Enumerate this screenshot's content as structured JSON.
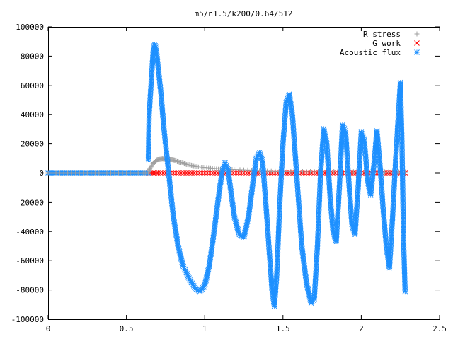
{
  "chart_data": {
    "type": "scatter",
    "title": "m5/n1.5/k200/0.64/512",
    "xlabel": "",
    "ylabel": "",
    "xlim": [
      0,
      2.5
    ],
    "ylim": [
      -100000,
      100000
    ],
    "x_ticks": [
      0,
      0.5,
      1,
      1.5,
      2,
      2.5
    ],
    "x_tick_labels": [
      "0",
      "0.5",
      "1",
      "1.5",
      "2",
      "2.5"
    ],
    "y_ticks": [
      -100000,
      -80000,
      -60000,
      -40000,
      -20000,
      0,
      20000,
      40000,
      60000,
      80000,
      100000
    ],
    "y_tick_labels": [
      "-100000",
      "-80000",
      "-60000",
      "-40000",
      "-20000",
      "0",
      "20000",
      "40000",
      "60000",
      "80000",
      "100000"
    ],
    "grid": false,
    "legend_position": "top-right",
    "series": [
      {
        "name": "R stress",
        "marker": "plus",
        "color": "#a0a0a0",
        "points": [
          [
            0.0,
            0
          ],
          [
            0.1,
            0
          ],
          [
            0.2,
            0
          ],
          [
            0.3,
            0
          ],
          [
            0.4,
            0
          ],
          [
            0.5,
            0
          ],
          [
            0.6,
            0
          ],
          [
            0.64,
            0
          ],
          [
            0.65,
            3000
          ],
          [
            0.67,
            6500
          ],
          [
            0.69,
            8500
          ],
          [
            0.71,
            9500
          ],
          [
            0.73,
            9800
          ],
          [
            0.75,
            9500
          ],
          [
            0.77,
            8800
          ],
          [
            0.79,
            9000
          ],
          [
            0.81,
            8500
          ],
          [
            0.84,
            7500
          ],
          [
            0.87,
            6500
          ],
          [
            0.9,
            5500
          ],
          [
            0.93,
            4800
          ],
          [
            0.96,
            4200
          ],
          [
            1.0,
            3600
          ],
          [
            1.05,
            3100
          ],
          [
            1.1,
            2700
          ],
          [
            1.15,
            2400
          ],
          [
            1.2,
            2100
          ],
          [
            1.3,
            1700
          ],
          [
            1.4,
            1400
          ],
          [
            1.5,
            1200
          ],
          [
            1.6,
            1000
          ],
          [
            1.7,
            900
          ],
          [
            1.8,
            800
          ],
          [
            1.9,
            700
          ],
          [
            2.0,
            600
          ],
          [
            2.1,
            550
          ],
          [
            2.2,
            500
          ],
          [
            2.28,
            450
          ]
        ]
      },
      {
        "name": "G work",
        "marker": "cross",
        "color": "#ff0000",
        "points": [
          [
            0.64,
            0
          ],
          [
            0.7,
            0
          ],
          [
            0.8,
            0
          ],
          [
            0.9,
            0
          ],
          [
            1.0,
            0
          ],
          [
            1.1,
            0
          ],
          [
            1.2,
            0
          ],
          [
            1.3,
            0
          ],
          [
            1.4,
            0
          ],
          [
            1.5,
            0
          ],
          [
            1.6,
            0
          ],
          [
            1.7,
            0
          ],
          [
            1.8,
            0
          ],
          [
            1.9,
            0
          ],
          [
            2.0,
            0
          ],
          [
            2.1,
            0
          ],
          [
            2.2,
            0
          ],
          [
            2.28,
            0
          ]
        ]
      },
      {
        "name": "Acoustic flux",
        "marker": "star",
        "color": "#1e90ff",
        "baseline": {
          "x_from": 0.0,
          "x_to": 0.64,
          "value": 0
        },
        "curve": [
          [
            0.64,
            9000
          ],
          [
            0.645,
            40000
          ],
          [
            0.66,
            65000
          ],
          [
            0.67,
            82000
          ],
          [
            0.68,
            88000
          ],
          [
            0.69,
            85000
          ],
          [
            0.7,
            75000
          ],
          [
            0.72,
            55000
          ],
          [
            0.74,
            30000
          ],
          [
            0.76,
            10000
          ],
          [
            0.78,
            -10000
          ],
          [
            0.8,
            -30000
          ],
          [
            0.83,
            -50000
          ],
          [
            0.86,
            -63000
          ],
          [
            0.9,
            -72000
          ],
          [
            0.94,
            -79000
          ],
          [
            0.97,
            -81000
          ],
          [
            1.0,
            -77000
          ],
          [
            1.03,
            -63000
          ],
          [
            1.06,
            -40000
          ],
          [
            1.09,
            -15000
          ],
          [
            1.11,
            0
          ],
          [
            1.13,
            7000
          ],
          [
            1.15,
            2000
          ],
          [
            1.17,
            -15000
          ],
          [
            1.19,
            -30000
          ],
          [
            1.22,
            -42000
          ],
          [
            1.25,
            -44000
          ],
          [
            1.28,
            -30000
          ],
          [
            1.31,
            -5000
          ],
          [
            1.33,
            10000
          ],
          [
            1.35,
            14000
          ],
          [
            1.37,
            8000
          ],
          [
            1.39,
            -20000
          ],
          [
            1.41,
            -50000
          ],
          [
            1.43,
            -80000
          ],
          [
            1.445,
            -91000
          ],
          [
            1.46,
            -70000
          ],
          [
            1.48,
            -20000
          ],
          [
            1.5,
            20000
          ],
          [
            1.52,
            48000
          ],
          [
            1.54,
            54000
          ],
          [
            1.56,
            40000
          ],
          [
            1.58,
            10000
          ],
          [
            1.6,
            -20000
          ],
          [
            1.62,
            -50000
          ],
          [
            1.65,
            -75000
          ],
          [
            1.68,
            -89000
          ],
          [
            1.7,
            -86000
          ],
          [
            1.72,
            -50000
          ],
          [
            1.74,
            0
          ],
          [
            1.76,
            30000
          ],
          [
            1.78,
            20000
          ],
          [
            1.8,
            -15000
          ],
          [
            1.82,
            -40000
          ],
          [
            1.84,
            -47000
          ],
          [
            1.86,
            -10000
          ],
          [
            1.88,
            33000
          ],
          [
            1.9,
            28000
          ],
          [
            1.92,
            -5000
          ],
          [
            1.94,
            -35000
          ],
          [
            1.96,
            -42000
          ],
          [
            1.98,
            -10000
          ],
          [
            2.0,
            28000
          ],
          [
            2.02,
            22000
          ],
          [
            2.04,
            -5000
          ],
          [
            2.06,
            -15000
          ],
          [
            2.08,
            5000
          ],
          [
            2.1,
            29000
          ],
          [
            2.12,
            5000
          ],
          [
            2.14,
            -25000
          ],
          [
            2.16,
            -50000
          ],
          [
            2.18,
            -65000
          ],
          [
            2.2,
            -30000
          ],
          [
            2.22,
            10000
          ],
          [
            2.24,
            45000
          ],
          [
            2.25,
            62000
          ],
          [
            2.26,
            20000
          ],
          [
            2.27,
            -45000
          ],
          [
            2.28,
            -81000
          ]
        ]
      }
    ]
  }
}
